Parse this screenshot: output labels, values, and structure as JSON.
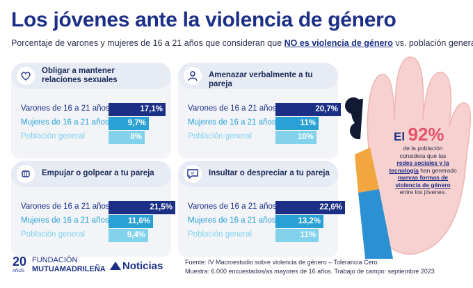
{
  "title": "Los jóvenes ante la violencia de género",
  "subtitle": {
    "pre": "Porcentaje de varones y mujeres de 16 a 21 años que consideran que ",
    "highlight": "NO es violencia de género",
    "post": " vs. población general"
  },
  "colors": {
    "varones": "#1b2f86",
    "mujeres": "#2aa1d4",
    "poblacion": "#82d2ec",
    "accent": "#e3546b"
  },
  "icons": [
    "heart-hand-icon",
    "megaphone-person-icon",
    "fist-icon",
    "speech-bubble-icon"
  ],
  "chart_data": [
    {
      "type": "bar",
      "title": "Obligar a mantener relaciones sexuales",
      "title_lines": [
        "Obligar a mantener",
        "relaciones sexuales"
      ],
      "categories": [
        "Varones de 16 a 21 años",
        "Mujeres de 16 a 21 años",
        "Población general"
      ],
      "values": [
        17.1,
        9.7,
        8
      ],
      "labels": [
        "17,1%",
        "9,7%",
        "8%"
      ]
    },
    {
      "type": "bar",
      "title": "Amenazar verbalmente a tu pareja",
      "title_lines": [
        "Amenazar verbalmente a tu pareja"
      ],
      "categories": [
        "Varones de 16 a 21 años",
        "Mujeres de 16 a 21 años",
        "Población general"
      ],
      "values": [
        20.7,
        11,
        10
      ],
      "labels": [
        "20,7%",
        "11%",
        "10%"
      ]
    },
    {
      "type": "bar",
      "title": "Empujar o golpear a tu pareja",
      "title_lines": [
        "Empujar o golpear a tu pareja"
      ],
      "categories": [
        "Varones de 16 a 21 años",
        "Mujeres de 16 a 21 años",
        "Población general"
      ],
      "values": [
        21.5,
        11.6,
        9.4
      ],
      "labels": [
        "21,5%",
        "11,6%",
        "9,4%"
      ]
    },
    {
      "type": "bar",
      "title": "Insultar o despreciar a tu pareja",
      "title_lines": [
        "Insultar o despreciar a tu pareja"
      ],
      "categories": [
        "Varones de 16 a 21 años",
        "Mujeres de 16 a 21 años",
        "Población general"
      ],
      "values": [
        22.6,
        13.2,
        11
      ],
      "labels": [
        "22,6%",
        "13,2%",
        "11%"
      ]
    }
  ],
  "stat": {
    "pre": "El",
    "number": "92%",
    "line1": "de la población",
    "line2": "considera que las",
    "bold1": "redes sociales y la",
    "bold2": "tecnología",
    "mid": " han generado",
    "bold3": "nuevas formas de",
    "bold4": "violencia de género",
    "line_end": "entre los jóvenes."
  },
  "footer": {
    "logo_years": "20",
    "logo_years_word": "AÑOS",
    "logo_line1": "FUNDACIÓN",
    "logo_line2": "MUTUAMADRILEÑA",
    "logo2": "Noticias",
    "source": "Fuente: IV Macroestudio sobre violencia de género – Tolerancia Cero.",
    "sample": "Muestra: 6.000 encuestados/as mayores de 16 años. Trabajo de campo: septiembre 2023"
  }
}
